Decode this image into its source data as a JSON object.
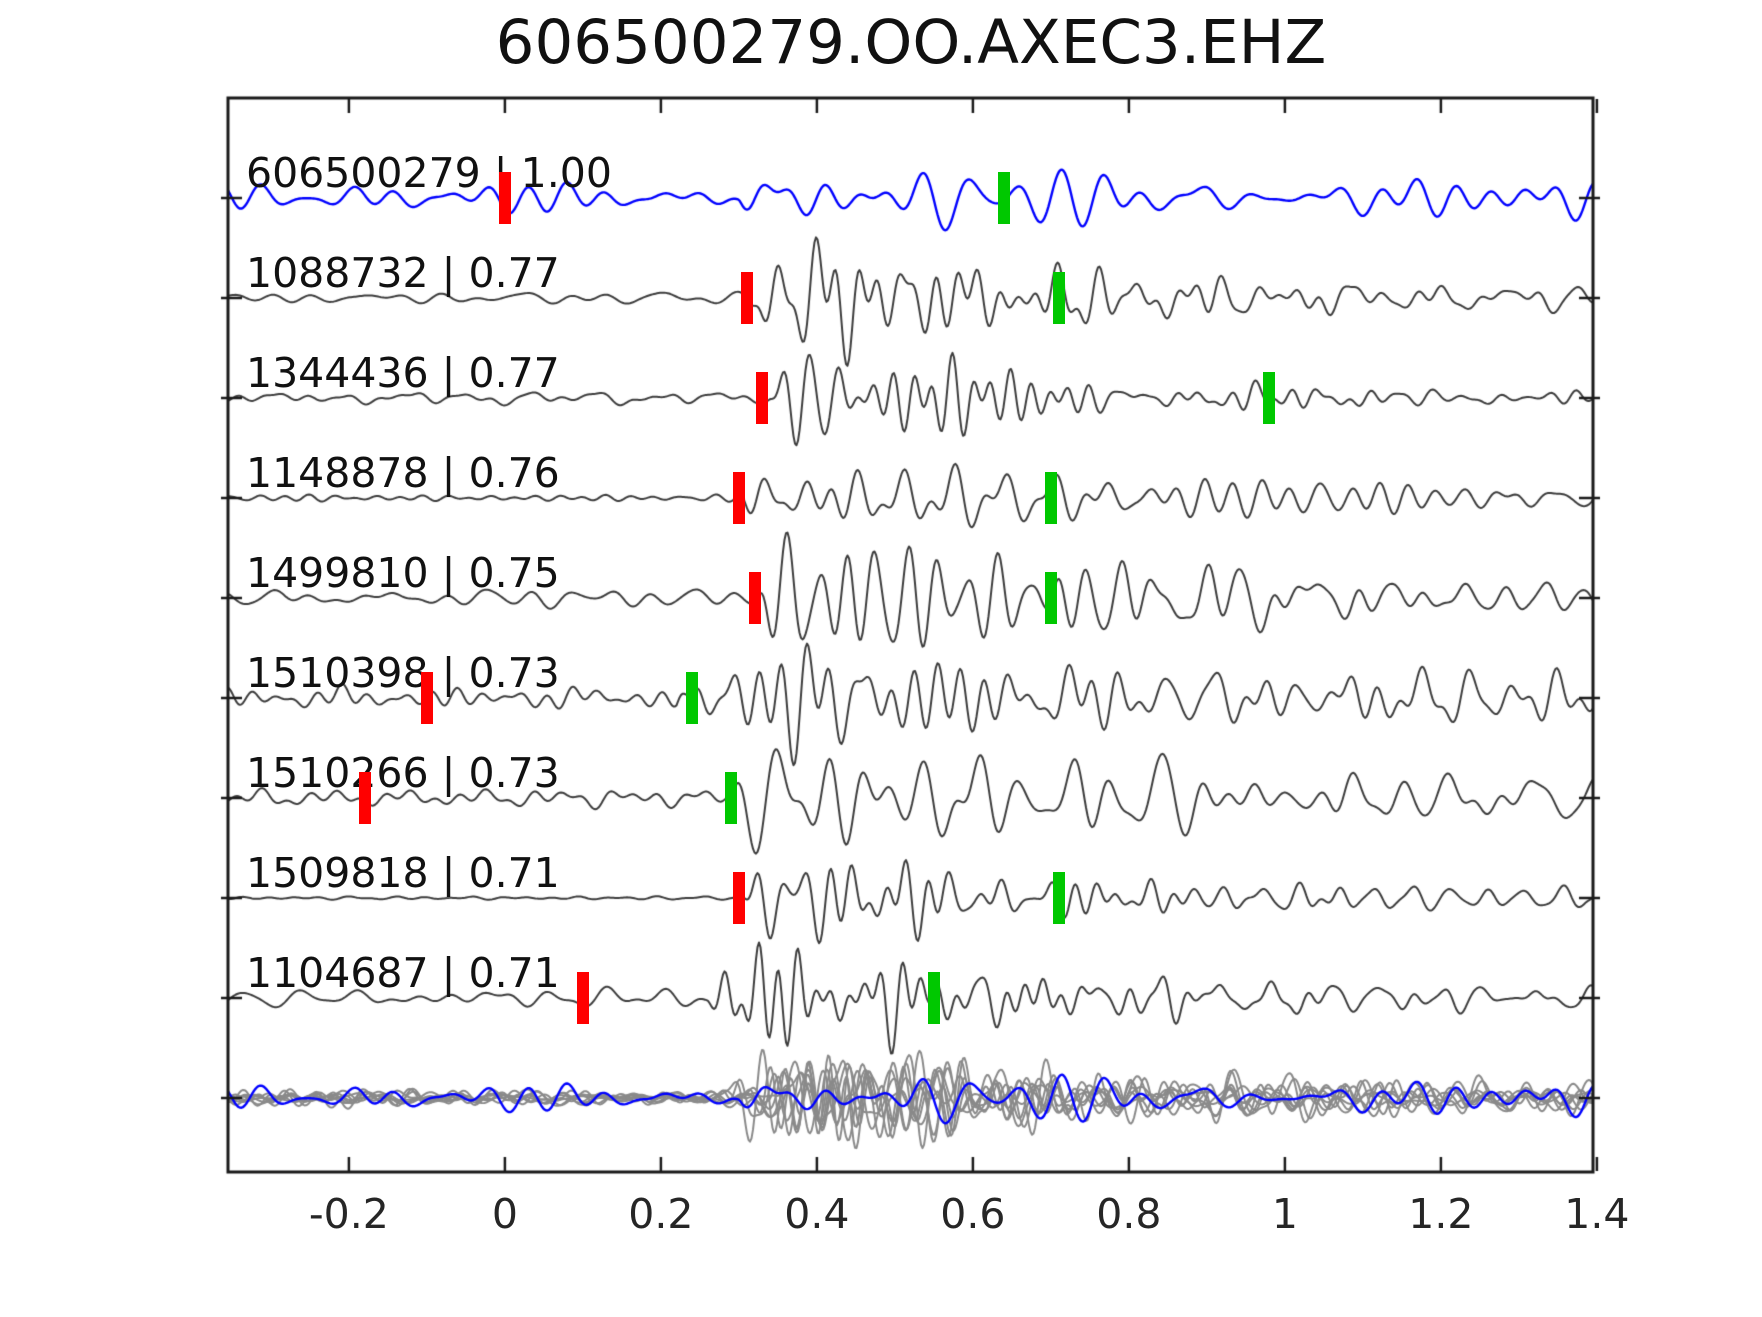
{
  "title": "606500279.OO.AXEC3.EHZ",
  "colors": {
    "red_marker": "#ff0000",
    "green_marker": "#00c800",
    "trace_blue": "#0000ff",
    "trace_dark": "#3c3c3c",
    "overlay_gray": "#8a8a8a",
    "axis": "#1a1a1a",
    "text": "#111111"
  },
  "chart_data": {
    "type": "line",
    "title": "606500279.OO.AXEC3.EHZ",
    "xlabel": "",
    "ylabel": "",
    "xlim": [
      -0.355,
      1.395
    ],
    "grid": false,
    "legend": "none",
    "xticks": [
      {
        "value": -0.2,
        "label": "-0.2"
      },
      {
        "value": 0.0,
        "label": "0"
      },
      {
        "value": 0.2,
        "label": "0.2"
      },
      {
        "value": 0.4,
        "label": "0.4"
      },
      {
        "value": 0.6,
        "label": "0.6"
      },
      {
        "value": 0.8,
        "label": "0.8"
      },
      {
        "value": 1.0,
        "label": "1"
      },
      {
        "value": 1.2,
        "label": "1.2"
      },
      {
        "value": 1.4,
        "label": "1.4"
      }
    ],
    "traces": [
      {
        "id": "606500279",
        "correlation": "1.00",
        "label": "606500279 | 1.00",
        "color": "#0000ff",
        "red_marker_t": 0.0,
        "green_marker_t": 0.64
      },
      {
        "id": "1088732",
        "correlation": "0.77",
        "label": "1088732 | 0.77",
        "color": "#3c3c3c",
        "red_marker_t": 0.31,
        "green_marker_t": 0.71
      },
      {
        "id": "1344436",
        "correlation": "0.77",
        "label": "1344436 | 0.77",
        "color": "#3c3c3c",
        "red_marker_t": 0.33,
        "green_marker_t": 0.98
      },
      {
        "id": "1148878",
        "correlation": "0.76",
        "label": "1148878 | 0.76",
        "color": "#3c3c3c",
        "red_marker_t": 0.3,
        "green_marker_t": 0.7
      },
      {
        "id": "1499810",
        "correlation": "0.75",
        "label": "1499810 | 0.75",
        "color": "#3c3c3c",
        "red_marker_t": 0.32,
        "green_marker_t": 0.7
      },
      {
        "id": "1510398",
        "correlation": "0.73",
        "label": "1510398 | 0.73",
        "color": "#3c3c3c",
        "red_marker_t": -0.1,
        "green_marker_t": 0.24
      },
      {
        "id": "1510266",
        "correlation": "0.73",
        "label": "1510266 | 0.73",
        "color": "#3c3c3c",
        "red_marker_t": -0.18,
        "green_marker_t": 0.29
      },
      {
        "id": "1509818",
        "correlation": "0.71",
        "label": "1509818 | 0.71",
        "color": "#3c3c3c",
        "red_marker_t": 0.3,
        "green_marker_t": 0.71
      },
      {
        "id": "1104687",
        "correlation": "0.71",
        "label": "1104687 | 0.71",
        "color": "#3c3c3c",
        "red_marker_t": 0.1,
        "green_marker_t": 0.55
      }
    ],
    "overlay_row": {
      "description": "all traces stacked/overlaid, gray with reference trace in blue",
      "gray_count": 8,
      "blue_count": 1
    }
  }
}
